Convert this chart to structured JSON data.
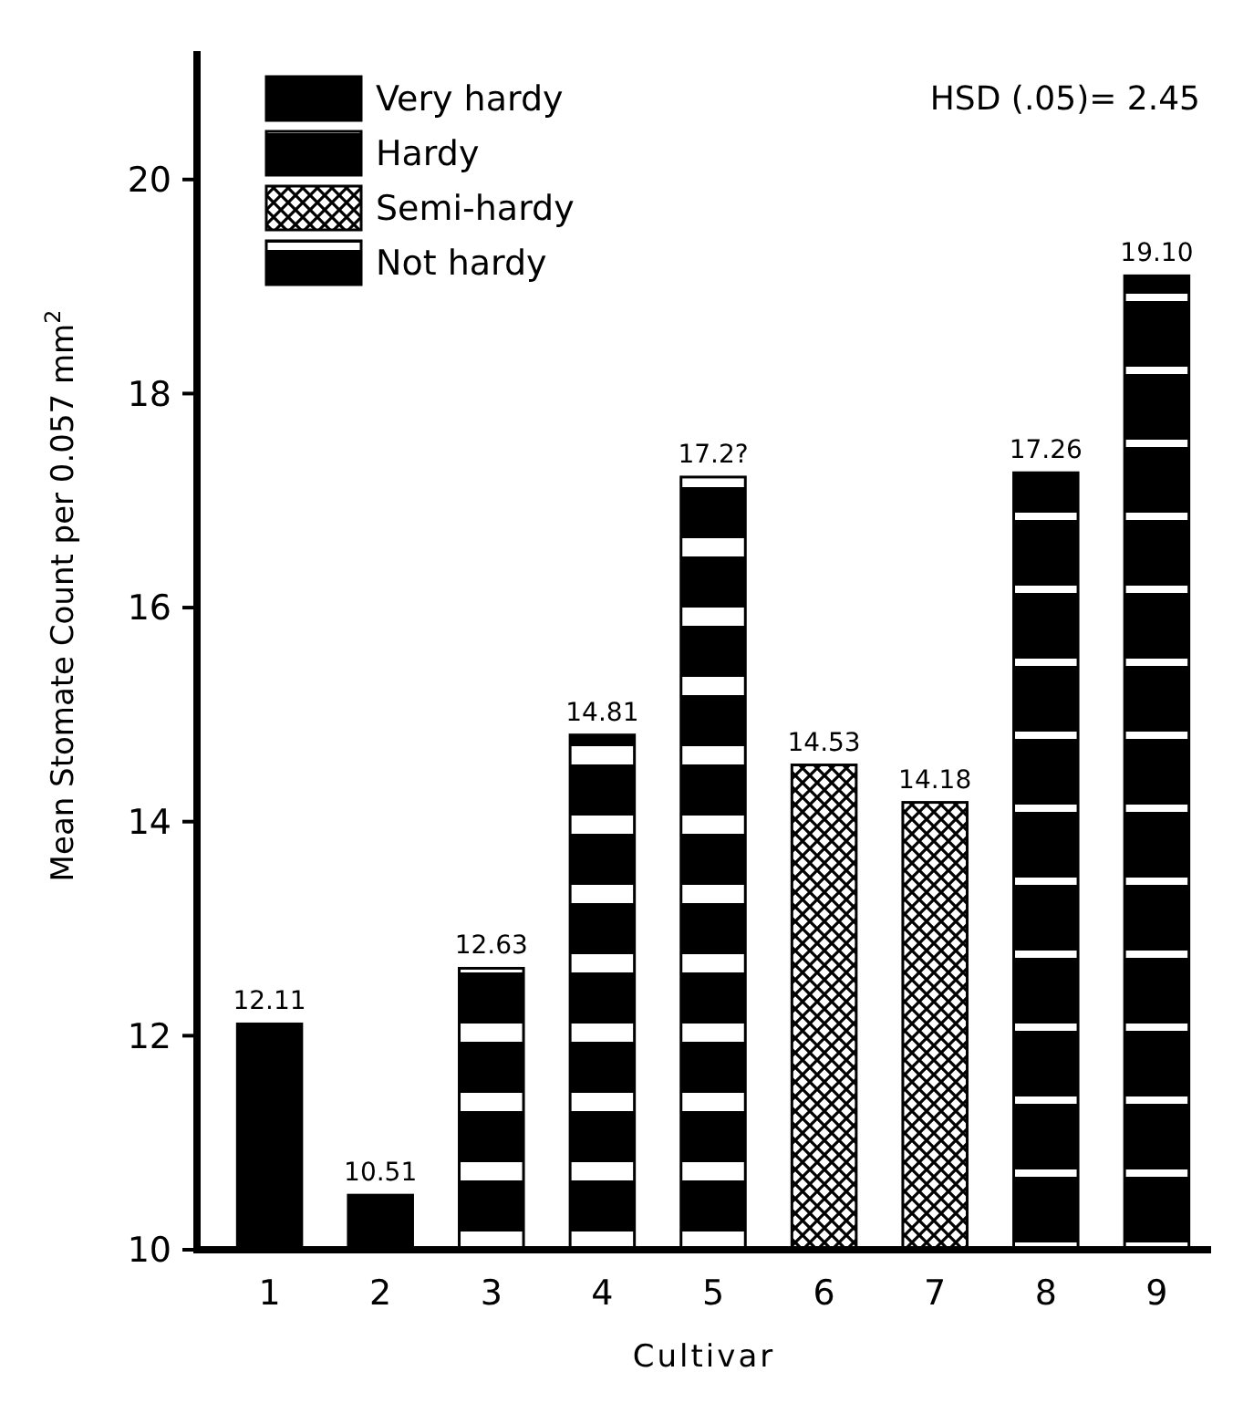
{
  "chart_data": {
    "type": "bar",
    "xlabel": "Cultivar",
    "ylabel": "Mean Stomate Count  per 0.057 mm$^{2}$",
    "categories": [
      "1",
      "2",
      "3",
      "4",
      "5",
      "6",
      "7",
      "8",
      "9"
    ],
    "series": [
      {
        "name": "Very hardy",
        "color": "#000000",
        "values": [
          12.11,
          10.51,
          null,
          null,
          null,
          null,
          null,
          null,
          null
        ],
        "value_labels": [
          "12.11",
          "10.51",
          null,
          null,
          null,
          null,
          null,
          null,
          null
        ]
      },
      {
        "name": "Hardy",
        "color": "#000000",
        "values": [
          null,
          null,
          12.63,
          14.81,
          17.22,
          null,
          null,
          null,
          null
        ],
        "value_labels": [
          null,
          null,
          "12.63",
          "14.81",
          "17.2?",
          null,
          null,
          null,
          null
        ]
      },
      {
        "name": "Semi-hardy",
        "color": "#000000",
        "values": [
          null,
          null,
          null,
          null,
          null,
          14.53,
          14.18,
          null,
          null
        ],
        "value_labels": [
          null,
          null,
          null,
          null,
          null,
          "14.53",
          "14.18",
          null,
          null
        ]
      },
      {
        "name": "Not hardy",
        "color": "#000000",
        "values": [
          null,
          null,
          null,
          null,
          null,
          null,
          null,
          17.26,
          19.1
        ],
        "value_labels": [
          null,
          null,
          null,
          null,
          null,
          null,
          null,
          "17.26",
          "19.10"
        ]
      }
    ],
    "ylim": [
      10,
      21.2
    ],
    "yticks": [
      10,
      12,
      14,
      16,
      18,
      20
    ],
    "grid": false,
    "legend": "top left",
    "annotations": [
      "HSD (.05)= 2.45"
    ]
  }
}
